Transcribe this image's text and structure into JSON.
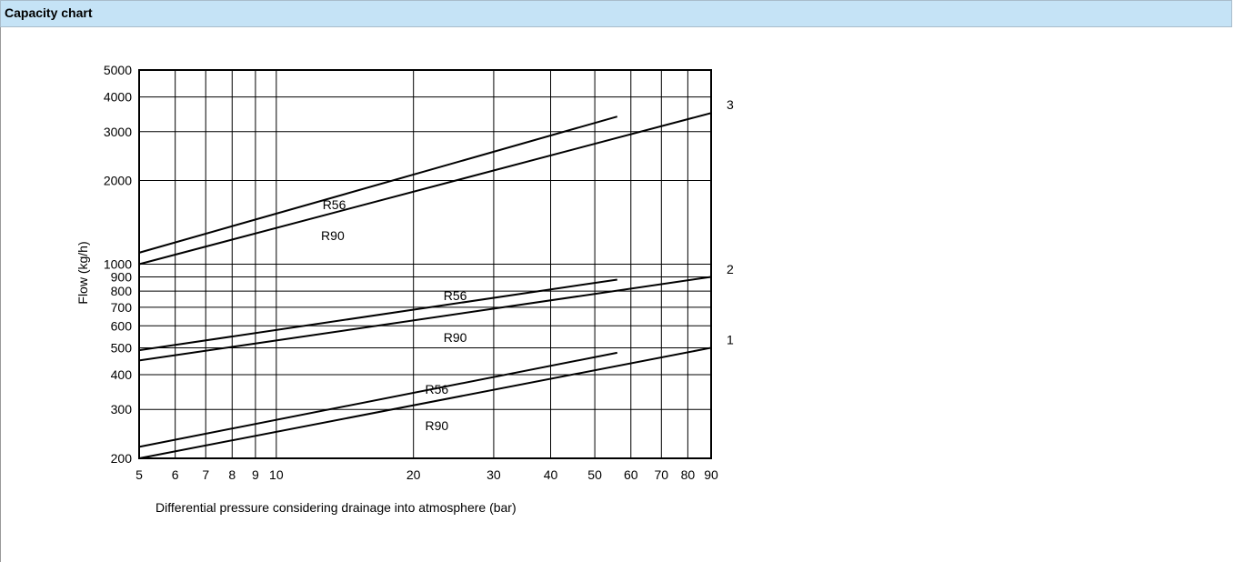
{
  "header": {
    "title": "Capacity chart"
  },
  "colors": {
    "header_bg": "#c5e3f6",
    "line": "#000000",
    "grid": "#000000"
  },
  "chart_data": {
    "type": "line",
    "title": "",
    "xlabel": "Differential pressure considering drainage into atmosphere (bar)",
    "ylabel": "Flow (kg/h)",
    "xscale": "log",
    "yscale": "log",
    "xlim": [
      5,
      90
    ],
    "ylim": [
      200,
      5000
    ],
    "grid": true,
    "x_ticks": [
      5,
      6,
      7,
      8,
      9,
      10,
      20,
      30,
      40,
      50,
      60,
      70,
      80,
      90
    ],
    "x_tick_labels": [
      "5",
      "6",
      "7",
      "8",
      "9",
      "10",
      "20",
      "30",
      "40",
      "50",
      "60",
      "70",
      "80",
      "90"
    ],
    "y_ticks": [
      200,
      300,
      400,
      500,
      600,
      700,
      800,
      900,
      1000,
      2000,
      3000,
      4000,
      5000
    ],
    "y_tick_labels": [
      "200",
      "300",
      "400",
      "500",
      "600",
      "700",
      "800",
      "900",
      "1000",
      "2000",
      "3000",
      "4000",
      "5000"
    ],
    "series": [
      {
        "group": "1",
        "name": "R56",
        "x": [
          5,
          56
        ],
        "y": [
          220,
          480
        ]
      },
      {
        "group": "1",
        "name": "R90",
        "x": [
          5,
          90
        ],
        "y": [
          200,
          500
        ]
      },
      {
        "group": "2",
        "name": "R56",
        "x": [
          5,
          56
        ],
        "y": [
          490,
          880
        ]
      },
      {
        "group": "2",
        "name": "R90",
        "x": [
          5,
          90
        ],
        "y": [
          450,
          900
        ]
      },
      {
        "group": "3",
        "name": "R56",
        "x": [
          5,
          56
        ],
        "y": [
          1100,
          3400
        ]
      },
      {
        "group": "3",
        "name": "R90",
        "x": [
          5,
          90
        ],
        "y": [
          1000,
          3500
        ]
      }
    ],
    "annotations": [
      {
        "text": "R56",
        "x": 13.4,
        "y": 1640
      },
      {
        "text": "R90",
        "x": 13.3,
        "y": 1270
      },
      {
        "text": "R56",
        "x": 24.7,
        "y": 770
      },
      {
        "text": "R90",
        "x": 24.7,
        "y": 545
      },
      {
        "text": "R56",
        "x": 22.5,
        "y": 355
      },
      {
        "text": "R90",
        "x": 22.5,
        "y": 262
      }
    ],
    "group_labels": [
      {
        "text": "3",
        "y": 3750
      },
      {
        "text": "2",
        "y": 960
      },
      {
        "text": "1",
        "y": 535
      }
    ]
  }
}
